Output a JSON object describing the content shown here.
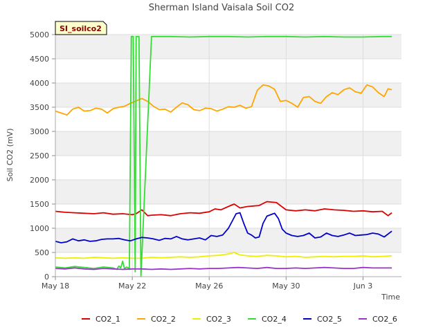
{
  "chart_data": {
    "type": "line",
    "title": "Sherman Island Vaisala Soil CO2",
    "badge": "SI_soilco2",
    "xlabel": "Time",
    "ylabel": "Soil CO2 (mV)",
    "xlim": [
      0,
      18
    ],
    "ylim": [
      0,
      5000
    ],
    "x_tick_positions": [
      0,
      4,
      8,
      12,
      16
    ],
    "x_tick_labels": [
      "May 18",
      "May 22",
      "May 26",
      "May 30",
      "Jun 3"
    ],
    "y_ticks": [
      0,
      500,
      1000,
      1500,
      2000,
      2500,
      3000,
      3500,
      4000,
      4500,
      5000
    ],
    "x_unit": "days since May 18",
    "background": {
      "band": "#f0f0f0",
      "plot": "#ffffff",
      "grid": "#dddddd"
    },
    "legend_position": "bottom",
    "series": [
      {
        "name": "CO2_1",
        "color": "#dd0000",
        "x": [
          0,
          0.5,
          1,
          1.5,
          2,
          2.5,
          3,
          3.5,
          4,
          4.2,
          4.5,
          4.8,
          5,
          5.5,
          6,
          6.5,
          7,
          7.5,
          8,
          8.3,
          8.6,
          9,
          9.3,
          9.6,
          10,
          10.3,
          10.6,
          11,
          11.5,
          12,
          12.5,
          13,
          13.5,
          14,
          14.5,
          15,
          15.5,
          16,
          16.5,
          17,
          17.3,
          17.5
        ],
        "y": [
          1350,
          1330,
          1320,
          1310,
          1300,
          1320,
          1290,
          1300,
          1280,
          1300,
          1380,
          1260,
          1270,
          1280,
          1260,
          1300,
          1320,
          1310,
          1340,
          1400,
          1380,
          1450,
          1500,
          1420,
          1450,
          1460,
          1470,
          1550,
          1530,
          1380,
          1360,
          1380,
          1360,
          1400,
          1380,
          1370,
          1350,
          1360,
          1340,
          1350,
          1260,
          1320
        ]
      },
      {
        "name": "CO2_2",
        "color": "#ffa500",
        "x": [
          0,
          0.3,
          0.6,
          0.9,
          1.2,
          1.5,
          1.8,
          2.1,
          2.4,
          2.7,
          3,
          3.3,
          3.6,
          3.9,
          4.2,
          4.5,
          4.8,
          5.1,
          5.4,
          5.7,
          6,
          6.3,
          6.6,
          6.9,
          7.2,
          7.5,
          7.8,
          8.1,
          8.4,
          8.7,
          9,
          9.3,
          9.6,
          9.9,
          10.2,
          10.5,
          10.8,
          11.1,
          11.4,
          11.7,
          12,
          12.3,
          12.6,
          12.9,
          13.2,
          13.5,
          13.8,
          14.1,
          14.4,
          14.7,
          15,
          15.3,
          15.6,
          15.9,
          16.2,
          16.5,
          16.8,
          17.1,
          17.3,
          17.5
        ],
        "y": [
          3420,
          3380,
          3340,
          3460,
          3500,
          3420,
          3430,
          3480,
          3460,
          3380,
          3470,
          3500,
          3520,
          3580,
          3630,
          3680,
          3620,
          3520,
          3450,
          3460,
          3400,
          3500,
          3590,
          3550,
          3450,
          3430,
          3480,
          3470,
          3420,
          3460,
          3510,
          3500,
          3540,
          3480,
          3510,
          3850,
          3960,
          3940,
          3870,
          3620,
          3640,
          3580,
          3500,
          3700,
          3720,
          3620,
          3580,
          3720,
          3800,
          3760,
          3860,
          3900,
          3820,
          3790,
          3960,
          3920,
          3800,
          3720,
          3880,
          3860
        ]
      },
      {
        "name": "CO2_3",
        "color": "#eeee00",
        "x": [
          0,
          0.5,
          1,
          1.5,
          2,
          2.5,
          3,
          3.5,
          4,
          4.5,
          5,
          5.5,
          6,
          6.5,
          7,
          7.5,
          8,
          8.5,
          9,
          9.3,
          9.6,
          10,
          10.5,
          11,
          11.5,
          12,
          12.5,
          13,
          13.5,
          14,
          14.5,
          15,
          15.5,
          16,
          16.5,
          17,
          17.5
        ],
        "y": [
          390,
          380,
          390,
          380,
          400,
          390,
          380,
          390,
          380,
          380,
          400,
          390,
          400,
          410,
          400,
          410,
          430,
          440,
          470,
          500,
          450,
          430,
          420,
          440,
          430,
          410,
          420,
          400,
          410,
          420,
          410,
          420,
          420,
          430,
          410,
          420,
          430
        ]
      },
      {
        "name": "CO2_4",
        "color": "#33dd33",
        "x": [
          0,
          0.5,
          1,
          1.5,
          2,
          2.5,
          3,
          3.2,
          3.3,
          3.4,
          3.5,
          3.6,
          3.7,
          3.8,
          3.85,
          3.95,
          4.05,
          4.15,
          4.2,
          4.25,
          4.35,
          4.45,
          5,
          6,
          7,
          8,
          9,
          10,
          11,
          12,
          13,
          14,
          15,
          16,
          17,
          17.5
        ],
        "y": [
          200,
          180,
          210,
          190,
          170,
          200,
          180,
          150,
          220,
          180,
          320,
          160,
          200,
          180,
          150,
          4960,
          4960,
          100,
          4960,
          4960,
          4960,
          0,
          4960,
          4960,
          4950,
          4960,
          4960,
          4950,
          4960,
          4960,
          4950,
          4960,
          4950,
          4950,
          4960,
          4960
        ]
      },
      {
        "name": "CO2_5",
        "color": "#0000cc",
        "x": [
          0,
          0.3,
          0.6,
          0.9,
          1.2,
          1.5,
          1.8,
          2.1,
          2.4,
          2.7,
          3,
          3.3,
          3.6,
          3.9,
          4.2,
          4.5,
          4.8,
          5.1,
          5.4,
          5.7,
          6,
          6.3,
          6.6,
          6.9,
          7.2,
          7.5,
          7.8,
          8.1,
          8.4,
          8.7,
          9,
          9.2,
          9.4,
          9.6,
          9.8,
          10,
          10.2,
          10.4,
          10.6,
          10.8,
          11,
          11.2,
          11.4,
          11.6,
          11.8,
          12,
          12.3,
          12.6,
          12.9,
          13.2,
          13.5,
          13.8,
          14.1,
          14.4,
          14.7,
          15,
          15.3,
          15.6,
          15.9,
          16.2,
          16.5,
          16.8,
          17.1,
          17.3,
          17.5
        ],
        "y": [
          730,
          700,
          720,
          780,
          740,
          760,
          730,
          740,
          770,
          780,
          780,
          790,
          760,
          740,
          780,
          810,
          800,
          780,
          750,
          790,
          780,
          830,
          780,
          760,
          780,
          800,
          760,
          850,
          830,
          860,
          1000,
          1150,
          1300,
          1320,
          1100,
          900,
          860,
          800,
          820,
          1100,
          1250,
          1280,
          1310,
          1200,
          980,
          900,
          850,
          830,
          850,
          900,
          800,
          820,
          900,
          850,
          830,
          860,
          900,
          850,
          860,
          870,
          900,
          880,
          820,
          880,
          940
        ]
      },
      {
        "name": "CO2_6",
        "color": "#9933cc",
        "x": [
          0,
          0.5,
          1,
          1.5,
          2,
          2.5,
          3,
          3.5,
          4,
          4.5,
          5,
          5.5,
          6,
          6.5,
          7,
          7.5,
          8,
          8.5,
          9,
          9.5,
          10,
          10.5,
          11,
          11.5,
          12,
          12.5,
          13,
          13.5,
          14,
          14.5,
          15,
          15.5,
          16,
          16.5,
          17,
          17.5
        ],
        "y": [
          170,
          160,
          180,
          160,
          150,
          170,
          160,
          150,
          160,
          160,
          150,
          160,
          150,
          160,
          170,
          160,
          170,
          170,
          180,
          190,
          180,
          170,
          190,
          170,
          170,
          180,
          170,
          180,
          190,
          180,
          170,
          170,
          190,
          180,
          180,
          180
        ]
      }
    ]
  }
}
